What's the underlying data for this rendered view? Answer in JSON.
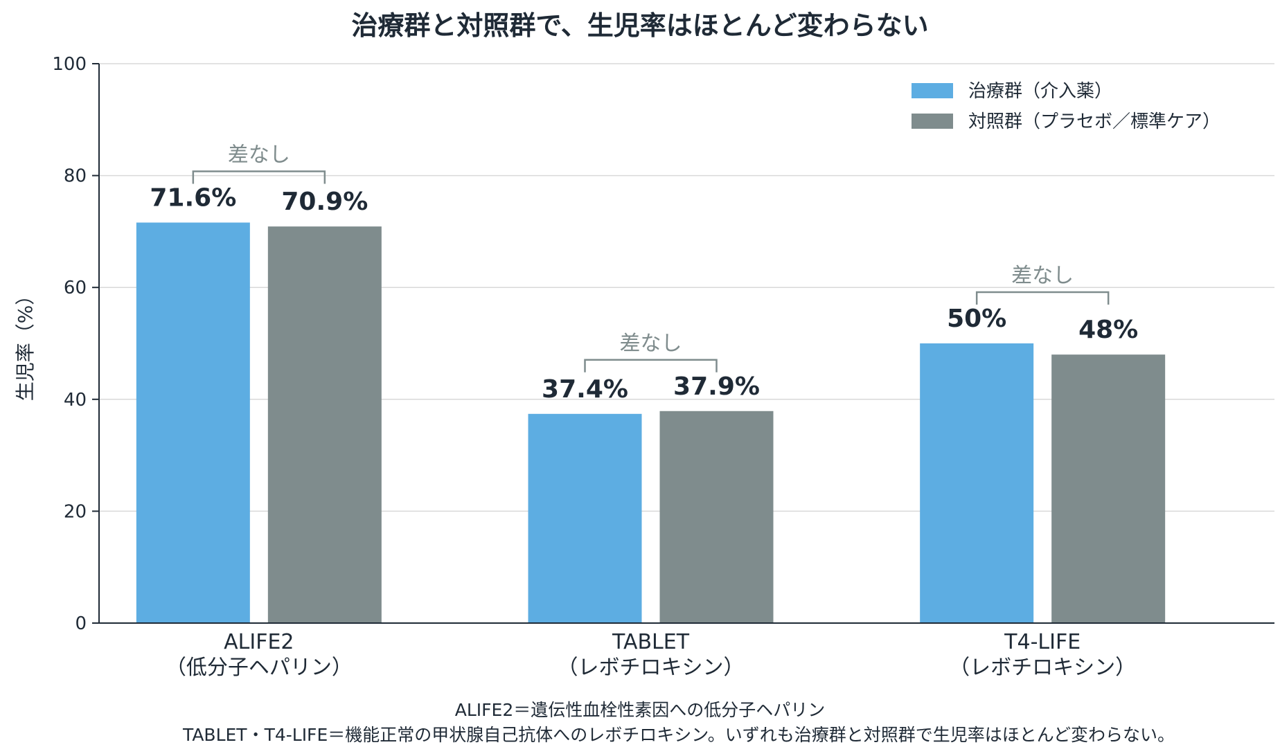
{
  "chart_data": {
    "type": "bar",
    "title": "治療群と対照群で、生児率はほとんど変わらない",
    "ylabel": "生児率（%）",
    "ylim": [
      0,
      100
    ],
    "yticks": [
      0,
      20,
      40,
      60,
      80,
      100
    ],
    "grid": true,
    "legend_position": "top-right",
    "categories": [
      {
        "line1": "ALIFE2",
        "line2": "（低分子ヘパリン）"
      },
      {
        "line1": "TABLET",
        "line2": "（レボチロキシン）"
      },
      {
        "line1": "T4-LIFE",
        "line2": "（レボチロキシン）"
      }
    ],
    "series": [
      {
        "name": "治療群（介入薬）",
        "color": "#5dade2",
        "values": [
          71.6,
          37.4,
          50
        ],
        "labels": [
          "71.6%",
          "37.4%",
          "50%"
        ]
      },
      {
        "name": "対照群（プラセボ／標準ケア）",
        "color": "#7f8c8d",
        "values": [
          70.9,
          37.9,
          48
        ],
        "labels": [
          "70.9%",
          "37.9%",
          "48%"
        ]
      }
    ],
    "annotations": [
      "差なし",
      "差なし",
      "差なし"
    ]
  },
  "footnotes": [
    "ALIFE2＝遺伝性血栓性素因への低分子ヘパリン",
    "TABLET・T4-LIFE＝機能正常の甲状腺自己抗体へのレボチロキシン。いずれも治療群と対照群で生児率はほとんど変わらない。"
  ]
}
